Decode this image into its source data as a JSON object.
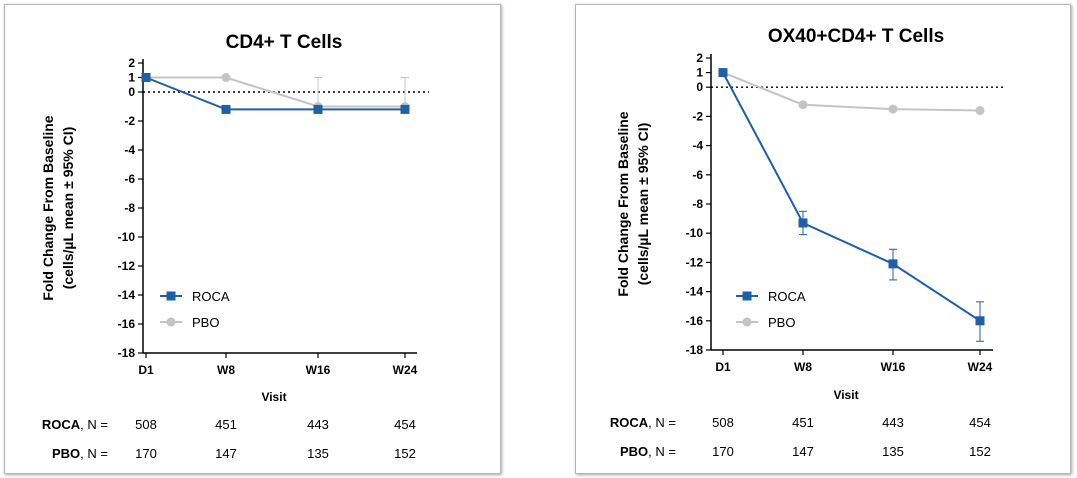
{
  "chart_data": [
    {
      "type": "line",
      "title": "CD4+ T Cells",
      "xlabel": "Visit",
      "ylabel": [
        "Fold Change From Baseline",
        "(cells/µL mean ± 95% CI)"
      ],
      "categories": [
        "D1",
        "W8",
        "W16",
        "W24"
      ],
      "ylim": [
        -18,
        2
      ],
      "yticks": [
        2,
        1,
        0,
        -2,
        -4,
        -6,
        -8,
        -10,
        -12,
        -14,
        -16,
        -18
      ],
      "reference_line_y": 0,
      "legend_position": "lower-left",
      "series": [
        {
          "name": "ROCA",
          "color": "#1f5fa8",
          "marker": "square",
          "values": [
            1,
            -1.2,
            -1.2,
            -1.2
          ],
          "ci_low": [
            1,
            -1.2,
            -1.2,
            -1.2
          ],
          "ci_high": [
            1,
            -1.2,
            -1.2,
            -1.2
          ]
        },
        {
          "name": "PBO",
          "color": "#c4c4c4",
          "marker": "circle",
          "values": [
            1,
            1,
            -1,
            -1
          ],
          "ci_low": [
            1,
            1,
            -1.2,
            -1.2
          ],
          "ci_high": [
            1,
            1,
            1,
            1
          ]
        }
      ],
      "n_table": [
        {
          "label": "ROCA",
          "suffix": ", N =",
          "values": [
            "508",
            "451",
            "443",
            "454"
          ]
        },
        {
          "label": "PBO",
          "suffix": ", N =",
          "values": [
            "170",
            "147",
            "135",
            "152"
          ]
        }
      ]
    },
    {
      "type": "line",
      "title": "OX40+CD4+ T Cells",
      "xlabel": "Visit",
      "ylabel": [
        "Fold Change From Baseline",
        "(cells/µL mean ± 95% CI)"
      ],
      "categories": [
        "D1",
        "W8",
        "W16",
        "W24"
      ],
      "ylim": [
        -18,
        2
      ],
      "yticks": [
        2,
        1,
        0,
        -2,
        -4,
        -6,
        -8,
        -10,
        -12,
        -14,
        -16,
        -18
      ],
      "reference_line_y": 0,
      "legend_position": "lower-left",
      "series": [
        {
          "name": "ROCA",
          "color": "#1f5fa8",
          "marker": "square",
          "values": [
            1,
            -9.3,
            -12.1,
            -16.0
          ],
          "ci_low": [
            1,
            -10.1,
            -13.2,
            -17.4
          ],
          "ci_high": [
            1,
            -8.5,
            -11.1,
            -14.7
          ]
        },
        {
          "name": "PBO",
          "color": "#c4c4c4",
          "marker": "circle",
          "values": [
            1,
            -1.2,
            -1.5,
            -1.6
          ],
          "ci_low": [
            1,
            -1.2,
            -1.5,
            -1.6
          ],
          "ci_high": [
            1,
            -1.2,
            -1.5,
            -1.6
          ]
        }
      ],
      "n_table": [
        {
          "label": "ROCA",
          "suffix": ", N =",
          "values": [
            "508",
            "451",
            "443",
            "454"
          ]
        },
        {
          "label": "PBO",
          "suffix": ", N =",
          "values": [
            "170",
            "147",
            "135",
            "152"
          ]
        }
      ]
    }
  ]
}
